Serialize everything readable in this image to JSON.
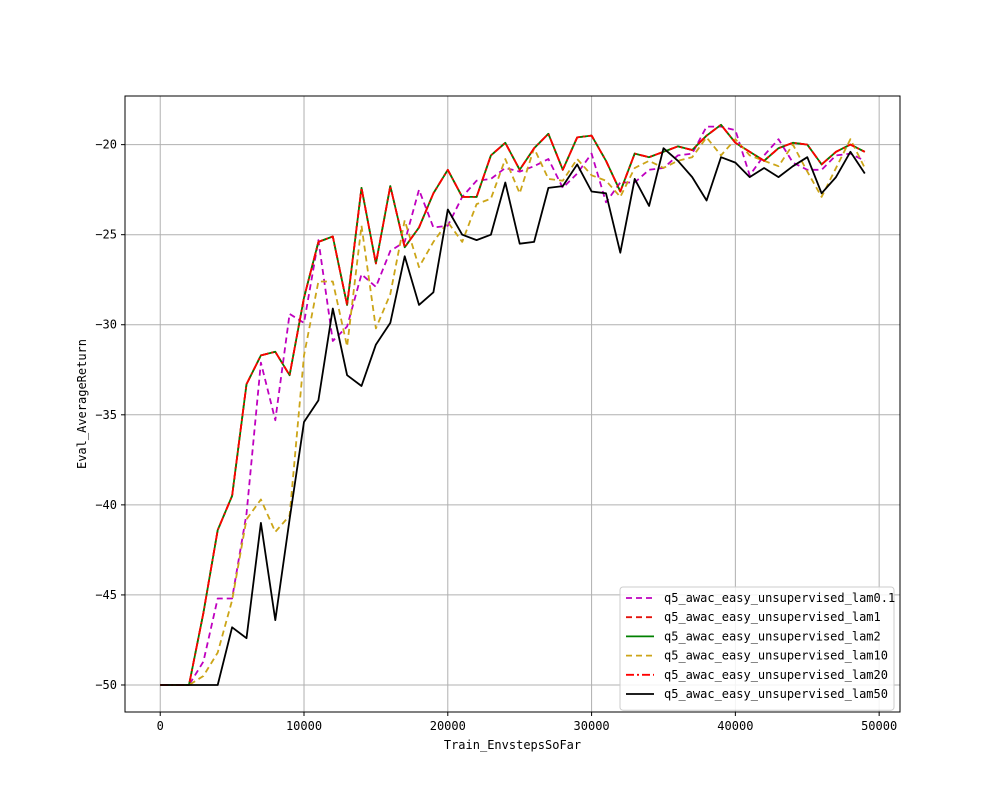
{
  "chart_data": {
    "type": "line",
    "title": "",
    "xlabel": "Train_EnvstepsSoFar",
    "ylabel": "Eval_AverageReturn",
    "xlim": [
      -2450,
      51450
    ],
    "ylim": [
      -51.5,
      -17.3
    ],
    "xticks": [
      0,
      10000,
      20000,
      30000,
      40000,
      50000
    ],
    "yticks": [
      -50,
      -45,
      -40,
      -35,
      -30,
      -25,
      -20
    ],
    "grid": true,
    "legend_position": "lower-right",
    "x": [
      0,
      1000,
      2000,
      3000,
      4000,
      5000,
      6000,
      7000,
      8000,
      9000,
      10000,
      11000,
      12000,
      13000,
      14000,
      15000,
      16000,
      17000,
      18000,
      19000,
      20000,
      21000,
      22000,
      23000,
      24000,
      25000,
      26000,
      27000,
      28000,
      29000,
      30000,
      31000,
      32000,
      33000,
      34000,
      35000,
      36000,
      37000,
      38000,
      39000,
      40000,
      41000,
      42000,
      43000,
      44000,
      45000,
      46000,
      47000,
      48000,
      49000
    ],
    "series": [
      {
        "name": "q5_awac_easy_unsupervised_lam0.1",
        "color": "#bf00bf",
        "dash": "dashed",
        "values": [
          -50,
          -50,
          -50,
          -48.7,
          -45.2,
          -45.2,
          -40.5,
          -32.1,
          -35.3,
          -29.4,
          -29.9,
          -25.3,
          -30.9,
          -30.1,
          -27.2,
          -27.9,
          -25.9,
          -25.4,
          -22.5,
          -24.6,
          -24.5,
          -22.9,
          -22.0,
          -21.9,
          -21.3,
          -21.5,
          -21.2,
          -20.8,
          -22.4,
          -21.6,
          -20.5,
          -23.2,
          -22.1,
          -22.1,
          -21.4,
          -21.3,
          -20.6,
          -20.5,
          -19.0,
          -19.0,
          -19.2,
          -21.7,
          -20.6,
          -19.7,
          -21.0,
          -21.4,
          -21.4,
          -20.6,
          -20.5,
          -20.9
        ]
      },
      {
        "name": "q5_awac_easy_unsupervised_lam1",
        "color": "#e3120b",
        "dash": "dashed",
        "values": [
          -50,
          -50,
          -50,
          -46.0,
          -41.4,
          -39.5,
          -33.3,
          -31.7,
          -31.5,
          -32.8,
          -28.5,
          -25.4,
          -25.1,
          -28.9,
          -22.4,
          -26.6,
          -22.3,
          -25.7,
          -24.6,
          -22.7,
          -21.4,
          -22.9,
          -22.9,
          -20.6,
          -19.9,
          -21.4,
          -20.2,
          -19.4,
          -21.4,
          -19.6,
          -19.5,
          -20.9,
          -22.6,
          -20.5,
          -20.7,
          -20.4,
          -20.1,
          -20.3,
          -19.5,
          -18.9,
          -19.9,
          -20.4,
          -20.9,
          -20.2,
          -19.9,
          -20.0,
          -21.1,
          -20.4,
          -20.0,
          -20.4
        ]
      },
      {
        "name": "q5_awac_easy_unsupervised_lam2",
        "color": "#008000",
        "dash": "solid",
        "values": [
          -50,
          -50,
          -50,
          -46.0,
          -41.4,
          -39.5,
          -33.3,
          -31.7,
          -31.5,
          -32.8,
          -28.5,
          -25.4,
          -25.1,
          -28.9,
          -22.4,
          -26.6,
          -22.3,
          -25.7,
          -24.6,
          -22.7,
          -21.4,
          -22.9,
          -22.9,
          -20.6,
          -19.9,
          -21.4,
          -20.2,
          -19.4,
          -21.4,
          -19.6,
          -19.5,
          -20.9,
          -22.6,
          -20.5,
          -20.7,
          -20.4,
          -20.1,
          -20.3,
          -19.5,
          -18.9,
          -19.9,
          -20.4,
          -20.9,
          -20.2,
          -19.9,
          -20.0,
          -21.1,
          -20.4,
          -20.0,
          -20.4
        ]
      },
      {
        "name": "q5_awac_easy_unsupervised_lam10",
        "color": "#cca518",
        "dash": "dashed",
        "values": [
          -50,
          -50,
          -50,
          -49.5,
          -48.2,
          -45.3,
          -40.8,
          -39.7,
          -41.5,
          -40.6,
          -31.7,
          -27.6,
          -27.6,
          -31.2,
          -24.5,
          -30.2,
          -28.3,
          -24.2,
          -26.8,
          -25.4,
          -24.3,
          -25.4,
          -23.3,
          -23.0,
          -20.8,
          -22.7,
          -20.2,
          -21.9,
          -22.0,
          -20.8,
          -21.7,
          -22.0,
          -22.9,
          -21.3,
          -20.9,
          -21.3,
          -20.9,
          -20.7,
          -19.6,
          -20.6,
          -19.7,
          -20.6,
          -20.9,
          -21.2,
          -20.0,
          -21.5,
          -22.9,
          -21.3,
          -19.7,
          -21.3
        ]
      },
      {
        "name": "q5_awac_easy_unsupervised_lam20",
        "color": "#ff0000",
        "dash": "dashdot",
        "values": [
          -50,
          -50,
          -50,
          -46.0,
          -41.4,
          -39.5,
          -33.3,
          -31.7,
          -31.5,
          -32.8,
          -28.5,
          -25.4,
          -25.1,
          -28.9,
          -22.4,
          -26.6,
          -22.3,
          -25.7,
          -24.6,
          -22.7,
          -21.4,
          -22.9,
          -22.9,
          -20.6,
          -19.9,
          -21.4,
          -20.2,
          -19.4,
          -21.4,
          -19.6,
          -19.5,
          -20.9,
          -22.6,
          -20.5,
          -20.7,
          -20.4,
          -20.1,
          -20.3,
          -19.5,
          -18.9,
          -19.9,
          -20.4,
          -20.9,
          -20.2,
          -19.9,
          -20.0,
          -21.1,
          -20.4,
          -20.0,
          -20.4
        ]
      },
      {
        "name": "q5_awac_easy_unsupervised_lam50",
        "color": "#000000",
        "dash": "solid",
        "values": [
          -50,
          -50,
          -50,
          -50,
          -50,
          -46.8,
          -47.4,
          -41.0,
          -46.4,
          -40.8,
          -35.4,
          -34.2,
          -29.1,
          -32.8,
          -33.4,
          -31.1,
          -29.9,
          -26.2,
          -28.9,
          -28.2,
          -23.6,
          -25.0,
          -25.3,
          -25.0,
          -22.1,
          -25.5,
          -25.4,
          -22.4,
          -22.3,
          -21.1,
          -22.6,
          -22.7,
          -26.0,
          -21.9,
          -23.4,
          -20.2,
          -20.9,
          -21.8,
          -23.1,
          -20.7,
          -21.0,
          -21.8,
          -21.3,
          -21.8,
          -21.2,
          -20.7,
          -22.7,
          -21.8,
          -20.4,
          -21.6
        ]
      }
    ]
  }
}
